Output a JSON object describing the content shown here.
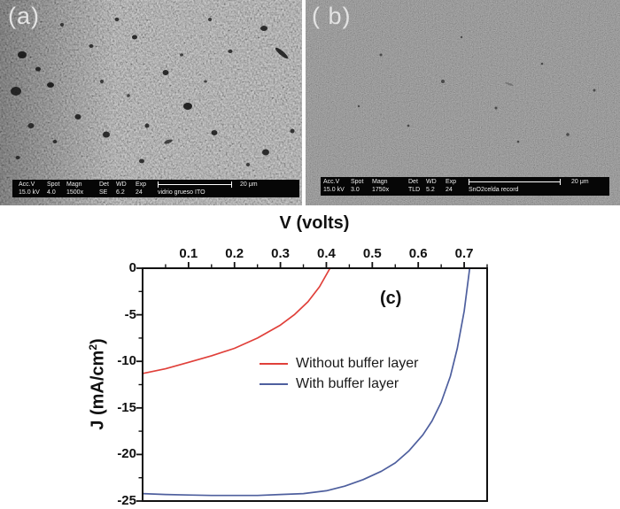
{
  "figure": {
    "panels": {
      "a": {
        "label": "(a)",
        "databar": {
          "cols": [
            {
              "h": "Acc.V",
              "v": "15.0 kV"
            },
            {
              "h": "Spot",
              "v": "4.0"
            },
            {
              "h": "Magn",
              "v": "1500x"
            },
            {
              "h": "Det",
              "v": "SE"
            },
            {
              "h": "WD",
              "v": "6.2"
            },
            {
              "h": "Exp",
              "v": "24"
            }
          ],
          "sample": "vidrio grueso ITO",
          "scale_label": "20 μm"
        }
      },
      "b": {
        "label": "( b)",
        "databar": {
          "cols": [
            {
              "h": "Acc.V",
              "v": "15.0 kV"
            },
            {
              "h": "Spot",
              "v": "3.0"
            },
            {
              "h": "Magn",
              "v": "1750x"
            },
            {
              "h": "Det",
              "v": "TLD"
            },
            {
              "h": "WD",
              "v": "5.2"
            },
            {
              "h": "Exp",
              "v": "24"
            }
          ],
          "sample": "SnO2celda record",
          "scale_label": "20 μm"
        }
      }
    }
  },
  "chart_data": {
    "type": "line",
    "panel_label": "(c)",
    "grid": false,
    "legend_position": "inside-lower-middle",
    "x_axis": {
      "label": "V (volts)",
      "position": "top",
      "range": [
        0,
        0.75
      ],
      "ticks": [
        0.1,
        0.2,
        0.3,
        0.4,
        0.5,
        0.6,
        0.7
      ],
      "tick_labels": [
        "0.1",
        "0.2",
        "0.3",
        "0.4",
        "0.5",
        "0.6",
        "0.7"
      ],
      "minor_step": 0.05
    },
    "y_axis": {
      "label_pre": "J (mA/cm",
      "label_sup": "2",
      "label_post": ")",
      "position": "left",
      "range": [
        -25,
        0
      ],
      "ticks": [
        0,
        -5,
        -10,
        -15,
        -20,
        -25
      ],
      "tick_labels": [
        "0",
        "-5",
        "-10",
        "-15",
        "-20",
        "-25"
      ],
      "minor_step": 2.5
    },
    "series": [
      {
        "name": "Without buffer layer",
        "color": "#e0403a",
        "points": [
          [
            0,
            -11.3
          ],
          [
            0.05,
            -10.8
          ],
          [
            0.1,
            -10.1
          ],
          [
            0.15,
            -9.4
          ],
          [
            0.2,
            -8.6
          ],
          [
            0.25,
            -7.5
          ],
          [
            0.3,
            -6.1
          ],
          [
            0.33,
            -5.0
          ],
          [
            0.36,
            -3.6
          ],
          [
            0.385,
            -2.0
          ],
          [
            0.408,
            0
          ]
        ]
      },
      {
        "name": "With buffer layer",
        "color": "#4e5f9e",
        "points": [
          [
            0,
            -24.2
          ],
          [
            0.05,
            -24.3
          ],
          [
            0.1,
            -24.35
          ],
          [
            0.15,
            -24.4
          ],
          [
            0.2,
            -24.4
          ],
          [
            0.25,
            -24.4
          ],
          [
            0.3,
            -24.3
          ],
          [
            0.35,
            -24.2
          ],
          [
            0.4,
            -23.9
          ],
          [
            0.44,
            -23.4
          ],
          [
            0.48,
            -22.7
          ],
          [
            0.52,
            -21.8
          ],
          [
            0.55,
            -20.9
          ],
          [
            0.58,
            -19.6
          ],
          [
            0.61,
            -17.9
          ],
          [
            0.63,
            -16.4
          ],
          [
            0.65,
            -14.4
          ],
          [
            0.67,
            -11.6
          ],
          [
            0.685,
            -8.6
          ],
          [
            0.7,
            -4.6
          ],
          [
            0.712,
            0
          ]
        ]
      }
    ]
  }
}
